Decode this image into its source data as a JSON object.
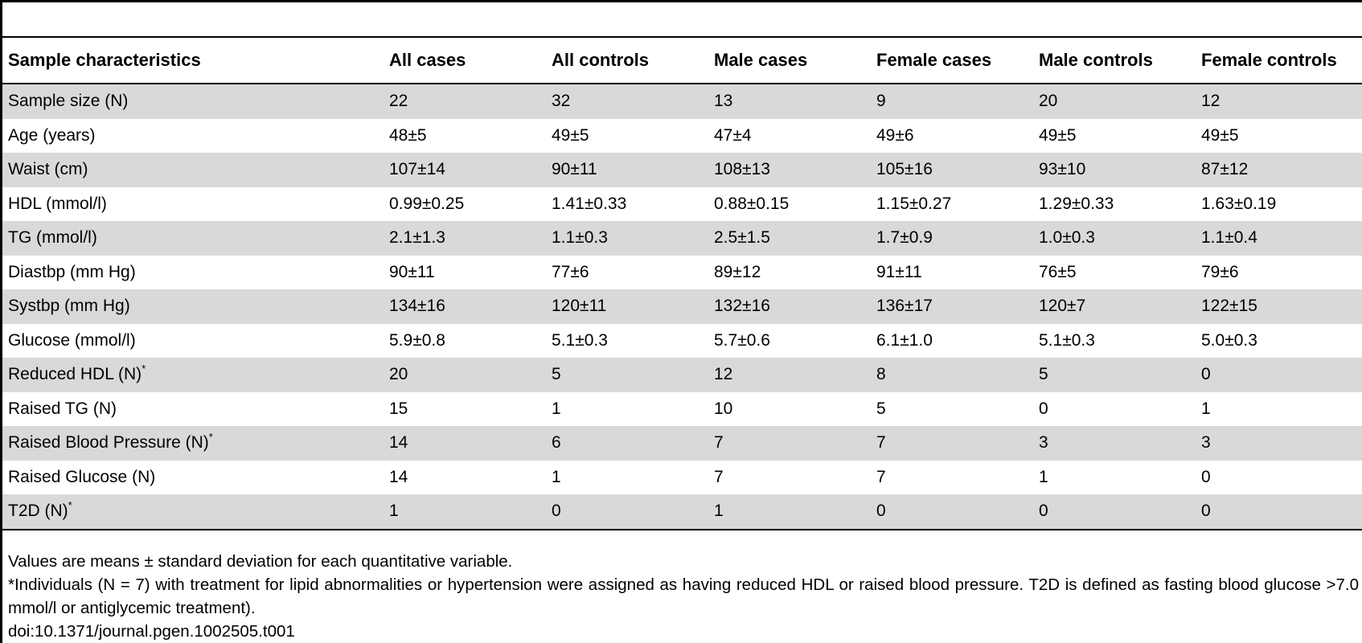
{
  "table": {
    "columns": [
      "Sample characteristics",
      "All cases",
      "All controls",
      "Male cases",
      "Female cases",
      "Male controls",
      "Female controls"
    ],
    "rows": [
      {
        "label": "Sample size (N)",
        "mark": "",
        "values": [
          "22",
          "32",
          "13",
          "9",
          "20",
          "12"
        ]
      },
      {
        "label": "Age (years)",
        "mark": "",
        "values": [
          "48±5",
          "49±5",
          "47±4",
          "49±6",
          "49±5",
          "49±5"
        ]
      },
      {
        "label": "Waist (cm)",
        "mark": "",
        "values": [
          "107±14",
          "90±11",
          "108±13",
          "105±16",
          "93±10",
          "87±12"
        ]
      },
      {
        "label": "HDL (mmol/l)",
        "mark": "",
        "values": [
          "0.99±0.25",
          "1.41±0.33",
          "0.88±0.15",
          "1.15±0.27",
          "1.29±0.33",
          "1.63±0.19"
        ]
      },
      {
        "label": "TG (mmol/l)",
        "mark": "",
        "values": [
          "2.1±1.3",
          "1.1±0.3",
          "2.5±1.5",
          "1.7±0.9",
          "1.0±0.3",
          "1.1±0.4"
        ]
      },
      {
        "label": "Diastbp (mm Hg)",
        "mark": "",
        "values": [
          "90±11",
          "77±6",
          "89±12",
          "91±11",
          "76±5",
          "79±6"
        ]
      },
      {
        "label": "Systbp (mm Hg)",
        "mark": "",
        "values": [
          "134±16",
          "120±11",
          "132±16",
          "136±17",
          "120±7",
          "122±15"
        ]
      },
      {
        "label": "Glucose (mmol/l)",
        "mark": "",
        "values": [
          "5.9±0.8",
          "5.1±0.3",
          "5.7±0.6",
          "6.1±1.0",
          "5.1±0.3",
          "5.0±0.3"
        ]
      },
      {
        "label": "Reduced HDL (N)",
        "mark": "*",
        "values": [
          "20",
          "5",
          "12",
          "8",
          "5",
          "0"
        ]
      },
      {
        "label": "Raised TG (N)",
        "mark": "",
        "values": [
          "15",
          "1",
          "10",
          "5",
          "0",
          "1"
        ]
      },
      {
        "label": "Raised Blood Pressure (N)",
        "mark": "*",
        "values": [
          "14",
          "6",
          "7",
          "7",
          "3",
          "3"
        ]
      },
      {
        "label": "Raised Glucose (N)",
        "mark": "",
        "values": [
          "14",
          "1",
          "7",
          "7",
          "1",
          "0"
        ]
      },
      {
        "label": "T2D (N)",
        "mark": "*",
        "values": [
          "1",
          "0",
          "1",
          "0",
          "0",
          "0"
        ]
      }
    ]
  },
  "footnotes": {
    "note1": "Values are means ± standard deviation for each quantitative variable.",
    "note2": "*Individuals (N = 7) with treatment for lipid abnormalities or hypertension were assigned as having reduced HDL or raised blood pressure. T2D is defined as fasting blood glucose >7.0 mmol/l or antiglycemic treatment).",
    "doi": "doi:10.1371/journal.pgen.1002505.t001"
  },
  "colors": {
    "stripe": "#d9d9d9",
    "rule": "#000000",
    "background": "#ffffff"
  }
}
